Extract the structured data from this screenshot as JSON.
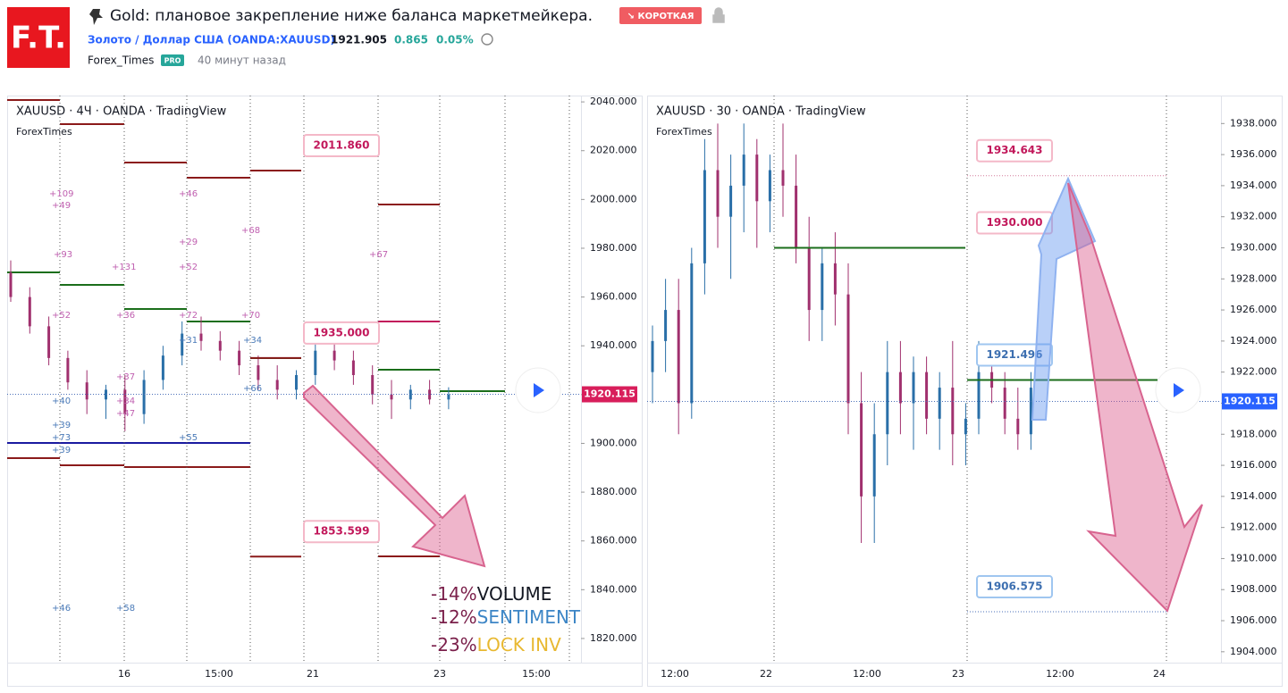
{
  "header": {
    "logo": "F.T.",
    "title": "Gold: плановое закрепление ниже баланса маркетмейкера.",
    "badge": "↘ КОРОТКАЯ",
    "symbol": "Золото / Доллар США (OANDA:XAUUSD)",
    "price": "1921.905",
    "change": "0.865",
    "change_pct": "0.05%",
    "author": "Forex_Times",
    "author_badge": "PRO",
    "time": "40 минут назад"
  },
  "panels": [
    {
      "title": "XAUUSD · 4Ч · OANDA · TradingView",
      "subtitle": "ForexTimes",
      "ylim": [
        1810.1,
        2042.6
      ],
      "yticks": [
        {
          "value": 2040,
          "label": "2040.000"
        },
        {
          "value": 2020,
          "label": "2020.000"
        },
        {
          "value": 2000,
          "label": "2000.000"
        },
        {
          "value": 1980,
          "label": "1980.000"
        },
        {
          "value": 1960,
          "label": "1960.000"
        },
        {
          "value": 1940,
          "label": "1940.000"
        },
        {
          "value": 1920,
          "label": "1920.000"
        },
        {
          "value": 1900,
          "label": "1900.000"
        },
        {
          "value": 1880,
          "label": "1880.000"
        },
        {
          "value": 1860,
          "label": "1860.000"
        },
        {
          "value": 1840,
          "label": "1840.000"
        },
        {
          "value": 1820,
          "label": "1820.000"
        }
      ],
      "xticks": [
        "16",
        "15:00",
        "21",
        "23",
        "15:00"
      ],
      "candles": [
        [
          1970,
          1975,
          1958,
          1960
        ],
        [
          1960,
          1964,
          1945,
          1948
        ],
        [
          1948,
          1952,
          1932,
          1935
        ],
        [
          1935,
          1938,
          1922,
          1925
        ],
        [
          1925,
          1930,
          1912,
          1918
        ],
        [
          1918,
          1924,
          1910,
          1922
        ],
        [
          1922,
          1928,
          1905,
          1912
        ],
        [
          1912,
          1930,
          1908,
          1926
        ],
        [
          1926,
          1940,
          1922,
          1936
        ],
        [
          1936,
          1950,
          1932,
          1945
        ],
        [
          1945,
          1952,
          1938,
          1942
        ],
        [
          1942,
          1946,
          1934,
          1938
        ],
        [
          1938,
          1942,
          1928,
          1932
        ],
        [
          1932,
          1936,
          1922,
          1926
        ],
        [
          1926,
          1932,
          1918,
          1922
        ],
        [
          1922,
          1930,
          1918,
          1928
        ],
        [
          1928,
          1942,
          1924,
          1938
        ],
        [
          1938,
          1944,
          1930,
          1934
        ],
        [
          1934,
          1938,
          1924,
          1928
        ],
        [
          1928,
          1932,
          1916,
          1920
        ],
        [
          1920,
          1926,
          1910,
          1918
        ],
        [
          1918,
          1924,
          1914,
          1922
        ],
        [
          1922,
          1926,
          1916,
          1918
        ],
        [
          1918,
          1923,
          1914,
          1920
        ]
      ],
      "levels": [
        {
          "value": 2011.86,
          "label": "2011.860"
        },
        {
          "value": 1935,
          "label": "1935.000"
        },
        {
          "value": 1853.599,
          "label": "1853.599"
        }
      ],
      "last": {
        "value": 1920.115,
        "label": "1920.115"
      },
      "annotations": [
        "+109",
        "+49",
        "+46",
        "+93",
        "+131",
        "+52",
        "+29",
        "+68",
        "+67",
        "+52",
        "+36",
        "+72",
        "+70",
        "+31",
        "+34",
        "+37",
        "+66",
        "+40",
        "+34",
        "+47",
        "+39",
        "+73",
        "+39",
        "+55",
        "+46",
        "+58"
      ],
      "factors": [
        {
          "pct": "-14%",
          "name": "VOLUME"
        },
        {
          "pct": "-12%",
          "name": "SENTIMENT"
        },
        {
          "pct": "-23%",
          "name": "LOCK INV"
        }
      ]
    },
    {
      "title": "XAUUSD · 30 · OANDA · TradingView",
      "subtitle": "ForexTimes",
      "ylim": [
        1903.3,
        1939.8
      ],
      "yticks": [
        {
          "value": 1938,
          "label": "1938.000"
        },
        {
          "value": 1936,
          "label": "1936.000"
        },
        {
          "value": 1934,
          "label": "1934.000"
        },
        {
          "value": 1932,
          "label": "1932.000"
        },
        {
          "value": 1930,
          "label": "1930.000"
        },
        {
          "value": 1928,
          "label": "1928.000"
        },
        {
          "value": 1926,
          "label": "1926.000"
        },
        {
          "value": 1924,
          "label": "1924.000"
        },
        {
          "value": 1922,
          "label": "1922.000"
        },
        {
          "value": 1920,
          "label": "1920.000"
        },
        {
          "value": 1918,
          "label": "1918.000"
        },
        {
          "value": 1916,
          "label": "1916.000"
        },
        {
          "value": 1914,
          "label": "1914.000"
        },
        {
          "value": 1912,
          "label": "1912.000"
        },
        {
          "value": 1910,
          "label": "1910.000"
        },
        {
          "value": 1908,
          "label": "1908.000"
        },
        {
          "value": 1906,
          "label": "1906.000"
        },
        {
          "value": 1904,
          "label": "1904.000"
        }
      ],
      "xticks": [
        "12:00",
        "22",
        "12:00",
        "23",
        "12:00",
        "24"
      ],
      "candles": [
        [
          1922,
          1925,
          1920,
          1924
        ],
        [
          1924,
          1928,
          1922,
          1926
        ],
        [
          1926,
          1928,
          1918,
          1920
        ],
        [
          1920,
          1930,
          1919,
          1929
        ],
        [
          1929,
          1937,
          1927,
          1935
        ],
        [
          1935,
          1938,
          1930,
          1932
        ],
        [
          1932,
          1936,
          1928,
          1934
        ],
        [
          1934,
          1938,
          1931,
          1936
        ],
        [
          1936,
          1937,
          1930,
          1933
        ],
        [
          1933,
          1936,
          1931,
          1935
        ],
        [
          1935,
          1938,
          1932,
          1934
        ],
        [
          1934,
          1936,
          1929,
          1930
        ],
        [
          1930,
          1932,
          1924,
          1926
        ],
        [
          1926,
          1930,
          1924,
          1929
        ],
        [
          1929,
          1931,
          1925,
          1927
        ],
        [
          1927,
          1929,
          1918,
          1920
        ],
        [
          1920,
          1922,
          1911,
          1914
        ],
        [
          1914,
          1920,
          1911,
          1918
        ],
        [
          1918,
          1924,
          1916,
          1922
        ],
        [
          1922,
          1924,
          1918,
          1920
        ],
        [
          1920,
          1923,
          1917,
          1922
        ],
        [
          1922,
          1923,
          1918,
          1919
        ],
        [
          1919,
          1922,
          1917,
          1921
        ],
        [
          1921,
          1924,
          1916,
          1918
        ],
        [
          1918,
          1920,
          1916,
          1919
        ],
        [
          1919,
          1924,
          1918,
          1922
        ],
        [
          1922,
          1923,
          1920,
          1921
        ],
        [
          1921,
          1922,
          1918,
          1919
        ],
        [
          1919,
          1921,
          1917,
          1918
        ],
        [
          1918,
          1922,
          1917,
          1921
        ]
      ],
      "levels": [
        {
          "value": 1934.643,
          "label": "1934.643"
        },
        {
          "value": 1930,
          "label": "1930.000"
        },
        {
          "value": 1921.496,
          "label": "1921.496"
        },
        {
          "value": 1906.575,
          "label": "1906.575"
        }
      ],
      "last": {
        "value": 1920.115,
        "label": "1920.115"
      }
    }
  ]
}
